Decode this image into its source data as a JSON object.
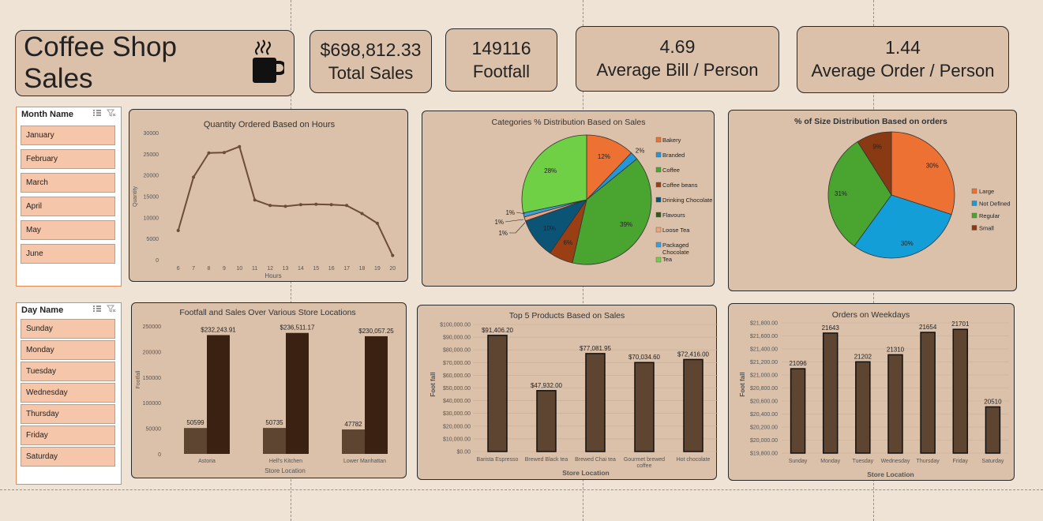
{
  "header": {
    "title": "Coffee Shop Sales"
  },
  "kpis": [
    {
      "value": "$698,812.33",
      "label": "Total Sales"
    },
    {
      "value": "149116",
      "label": "Footfall"
    },
    {
      "value": "4.69",
      "label": "Average Bill / Person"
    },
    {
      "value": "1.44",
      "label": "Average Order / Person"
    }
  ],
  "month_slicer": {
    "title": "Month Name",
    "items": [
      "January",
      "February",
      "March",
      "April",
      "May",
      "June"
    ]
  },
  "day_slicer": {
    "title": "Day Name",
    "items": [
      "Sunday",
      "Monday",
      "Tuesday",
      "Wednesday",
      "Thursday",
      "Friday",
      "Saturday"
    ]
  },
  "colors": {
    "background": "#eee3d4",
    "card": "#dbc0aa",
    "line": "#6b4d38",
    "bar_light": "#5e4531",
    "bar_dark": "#3a2111"
  },
  "chart_data": [
    {
      "id": "hours",
      "type": "line",
      "title": "Quantity Ordered Based on Hours",
      "xlabel": "Hours",
      "ylabel": "Quantity",
      "x": [
        6,
        7,
        8,
        9,
        10,
        11,
        12,
        13,
        14,
        15,
        16,
        17,
        18,
        19,
        20
      ],
      "values": [
        6900,
        19500,
        25200,
        25300,
        26700,
        14100,
        12800,
        12600,
        13000,
        13100,
        13000,
        12800,
        10900,
        8600,
        1000
      ],
      "ylim": [
        0,
        30000
      ],
      "yticks": [
        0,
        5000,
        10000,
        15000,
        20000,
        25000,
        30000
      ]
    },
    {
      "id": "categories",
      "type": "pie",
      "title": "Categories % Distribution Based on Sales",
      "legend": [
        "Bakery",
        "Branded",
        "Coffee",
        "Coffee beans",
        "Drinking Chocolate",
        "Flavours",
        "Loose Tea",
        "Packaged Chocolate",
        "Tea"
      ],
      "values": [
        12,
        2,
        39,
        6,
        10,
        0,
        1,
        1,
        28
      ],
      "labels": [
        "12%",
        "2%",
        "39%",
        "6%",
        "10%",
        "",
        "1%",
        "1%",
        "28%"
      ],
      "colors": [
        "#ed7133",
        "#2596d3",
        "#4aa530",
        "#9a3f14",
        "#0b5475",
        "#2e5a1c",
        "#f0a27a",
        "#3ca0d8",
        "#6fcf45"
      ],
      "outer_labels": [
        "1%",
        "1%",
        "1%"
      ]
    },
    {
      "id": "sizes",
      "type": "pie",
      "title": "% of Size Distribution Based on orders",
      "legend": [
        "Large",
        "Not Defined",
        "Regular",
        "Small"
      ],
      "values": [
        30,
        30,
        31,
        9
      ],
      "labels": [
        "30%",
        "30%",
        "31%",
        "9%"
      ],
      "colors": [
        "#ed7133",
        "#139ed8",
        "#4aa530",
        "#8a3a12"
      ]
    },
    {
      "id": "locations",
      "type": "bar",
      "title": "Footfall and Sales Over Various Store Locations",
      "xlabel": "Store Location",
      "ylabel": "Footfall",
      "categories": [
        "Astoria",
        "Hell's Kitchen",
        "Lower Manhattan"
      ],
      "series": [
        {
          "values": [
            50599,
            50735,
            47782
          ],
          "labels": [
            "50599",
            "50735",
            "47782"
          ]
        },
        {
          "values": [
            232243.91,
            236511.17,
            230057.25
          ],
          "labels": [
            "$232,243.91",
            "$236,511.17",
            "$230,057.25"
          ]
        }
      ],
      "ylim": [
        0,
        250000
      ],
      "yticks": [
        "0",
        "50000",
        "100000",
        "150000",
        "200000",
        "250000"
      ]
    },
    {
      "id": "products",
      "type": "bar",
      "title": "Top 5 Products Based on Sales",
      "xlabel": "Store Location",
      "ylabel": "Foot fall",
      "categories": [
        "Barista Espresso",
        "Brewed Black tea",
        "Brewed Chai tea",
        "Gourmet brewed coffee",
        "Hot chocolate"
      ],
      "values": [
        91406.2,
        47932.0,
        77081.95,
        70034.6,
        72416.0
      ],
      "labels": [
        "$91,406.20",
        "$47,932.00",
        "$77,081.95",
        "$70,034.60",
        "$72,416.00"
      ],
      "ylim": [
        0,
        100000
      ],
      "yticks": [
        "$0.00",
        "$10,000.00",
        "$20,000.00",
        "$30,000.00",
        "$40,000.00",
        "$50,000.00",
        "$60,000.00",
        "$70,000.00",
        "$80,000.00",
        "$90,000.00",
        "$100,000.00"
      ]
    },
    {
      "id": "weekdays",
      "type": "bar",
      "title": "Orders on Weekdays",
      "xlabel": "Store Location",
      "ylabel": "Foot fall",
      "categories": [
        "Sunday",
        "Monday",
        "Tuesday",
        "Wednesday",
        "Thursday",
        "Friday",
        "Saturday"
      ],
      "values": [
        21096,
        21643,
        21202,
        21310,
        21654,
        21701,
        20510
      ],
      "labels": [
        "21096",
        "21643",
        "21202",
        "21310",
        "21654",
        "21701",
        "20510"
      ],
      "ylim": [
        19800,
        21800
      ],
      "yticks": [
        "$19,800.00",
        "$20,000.00",
        "$20,200.00",
        "$20,400.00",
        "$20,600.00",
        "$20,800.00",
        "$21,000.00",
        "$21,200.00",
        "$21,400.00",
        "$21,600.00",
        "$21,800.00"
      ]
    }
  ]
}
